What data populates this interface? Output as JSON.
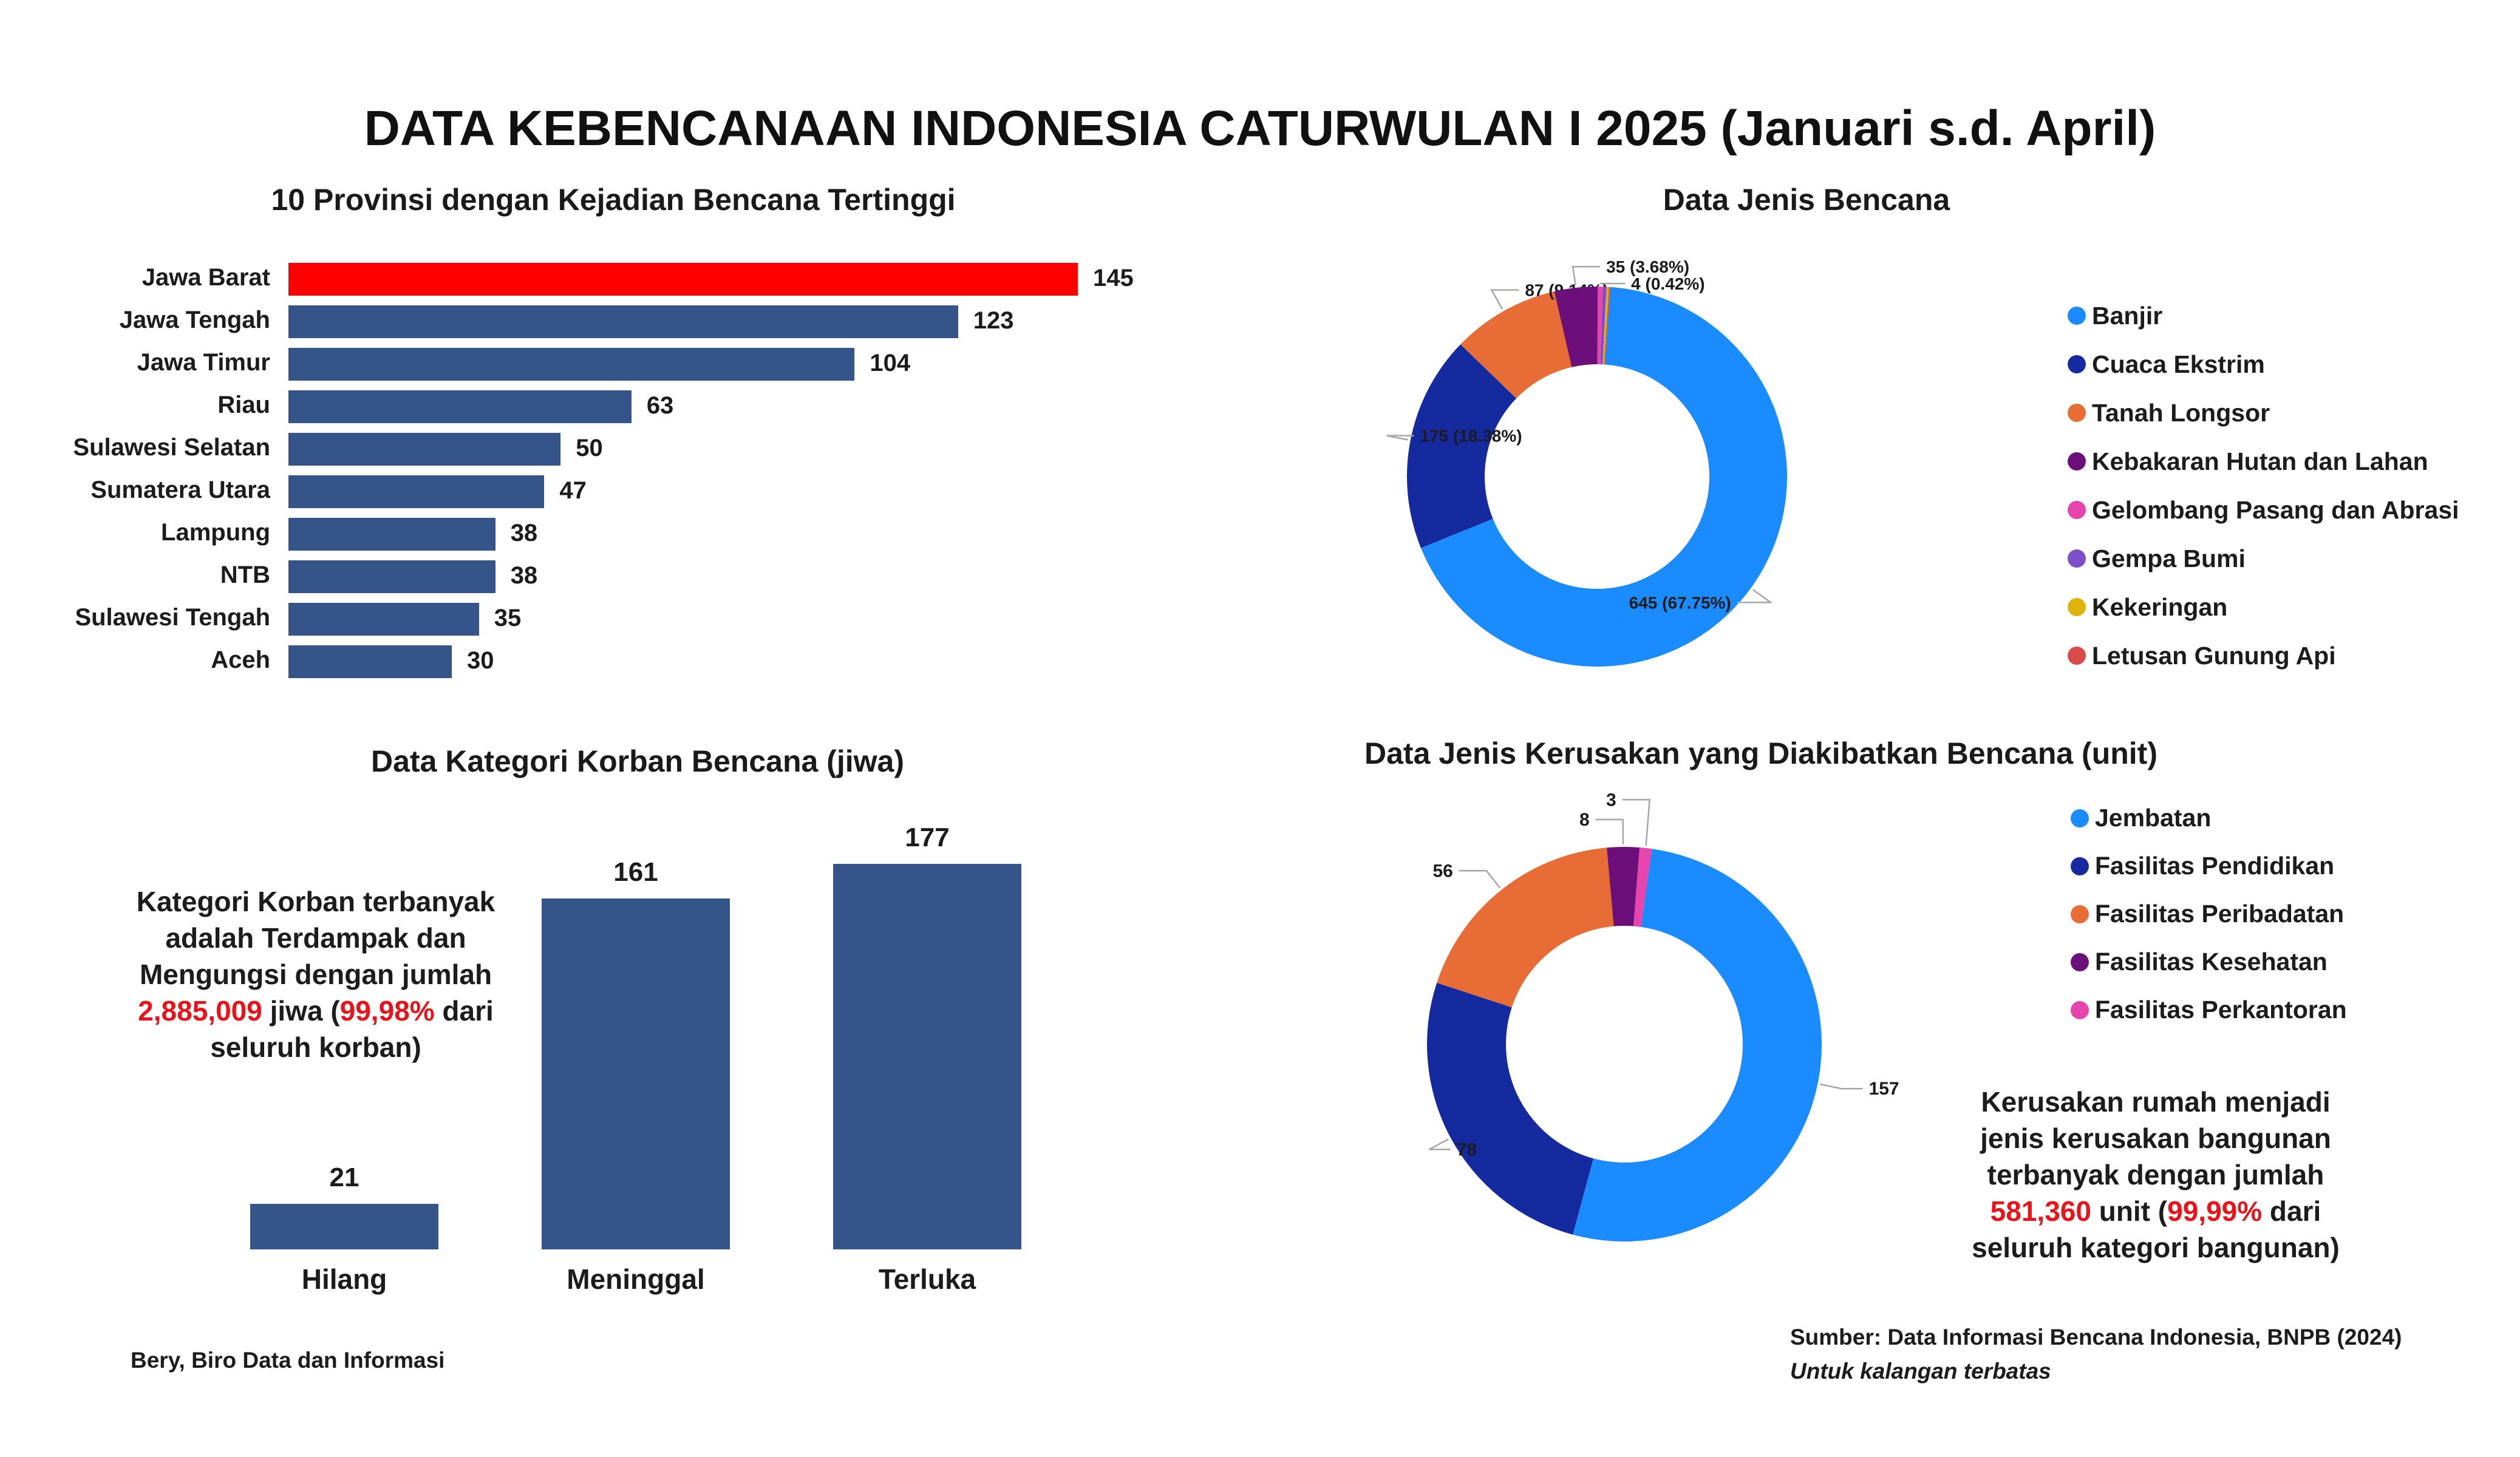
{
  "title": "DATA KEBENCANAAN INDONESIA CATURWULAN I 2025 (Januari s.d. April)",
  "colors": {
    "bar": "#34548a",
    "highlight": "#ff0000",
    "accent_red": "#e8141c"
  },
  "chart_data": [
    {
      "type": "bar",
      "orientation": "horizontal",
      "title": "10 Provinsi dengan Kejadian Bencana Tertinggi",
      "categories": [
        "Jawa Barat",
        "Jawa Tengah",
        "Jawa Timur",
        "Riau",
        "Sulawesi Selatan",
        "Sumatera Utara",
        "Lampung",
        "NTB",
        "Sulawesi Tengah",
        "Aceh"
      ],
      "values": [
        145,
        123,
        104,
        63,
        50,
        47,
        38,
        38,
        35,
        30
      ],
      "highlight_index": 0,
      "xlim": [
        0,
        145
      ]
    },
    {
      "type": "pie",
      "donut": true,
      "title": "Data Jenis Bencana",
      "categories": [
        "Banjir",
        "Cuaca Ekstrim",
        "Tanah Longsor",
        "Kebakaran Hutan dan Lahan",
        "Gelombang Pasang dan Abrasi",
        "Gempa Bumi",
        "Kekeringan",
        "Letusan Gunung Api"
      ],
      "values": [
        645,
        175,
        87,
        35,
        4,
        3,
        2,
        1
      ],
      "colors": [
        "#1a8cff",
        "#152a9e",
        "#e86c35",
        "#6d0f7a",
        "#e645ad",
        "#7f4fc9",
        "#e0b20e",
        "#d94a4a"
      ],
      "data_labels": [
        "645 (67.75%)",
        "175 (18.38%)",
        "87 (9.14%)",
        "35 (3.68%)",
        "4 (0.42%)",
        "",
        "",
        ""
      ],
      "legend_position": "right"
    },
    {
      "type": "bar",
      "orientation": "vertical",
      "title": "Data Kategori Korban Bencana (jiwa)",
      "categories": [
        "Hilang",
        "Meninggal",
        "Terluka"
      ],
      "values": [
        21,
        161,
        177
      ],
      "ylim": [
        0,
        177
      ]
    },
    {
      "type": "pie",
      "donut": true,
      "title": "Data Jenis Kerusakan yang Diakibatkan Bencana (unit)",
      "categories": [
        "Jembatan",
        "Fasilitas Pendidikan",
        "Fasilitas Peribadatan",
        "Fasilitas Kesehatan",
        "Fasilitas Perkantoran"
      ],
      "values": [
        157,
        78,
        56,
        8,
        3
      ],
      "colors": [
        "#1a8cff",
        "#152a9e",
        "#e86c35",
        "#6d0f7a",
        "#e645ad"
      ],
      "data_labels": [
        "157",
        "78",
        "56",
        "8",
        "3"
      ],
      "legend_position": "right"
    }
  ],
  "victim_note": {
    "line1": "Kategori Korban terbanyak",
    "line2": "adalah Terdampak dan",
    "line3": "Mengungsi dengan jumlah",
    "amount": "2,885,009",
    "mid": " jiwa (",
    "pct": "99,98%",
    "tail": " dari",
    "line5": "seluruh korban)"
  },
  "damage_note": {
    "line1": "Kerusakan rumah menjadi",
    "line2": "jenis kerusakan bangunan",
    "line3": "terbanyak dengan jumlah",
    "amount": "581,360",
    "mid": " unit (",
    "pct": "99,99%",
    "tail": " dari",
    "line5": "seluruh kategori bangunan)"
  },
  "footer": {
    "author": "Bery, Biro Data dan Informasi",
    "source": "Sumber: Data Informasi Bencana Indonesia, BNPB (2024)",
    "restricted": "Untuk kalangan terbatas"
  }
}
